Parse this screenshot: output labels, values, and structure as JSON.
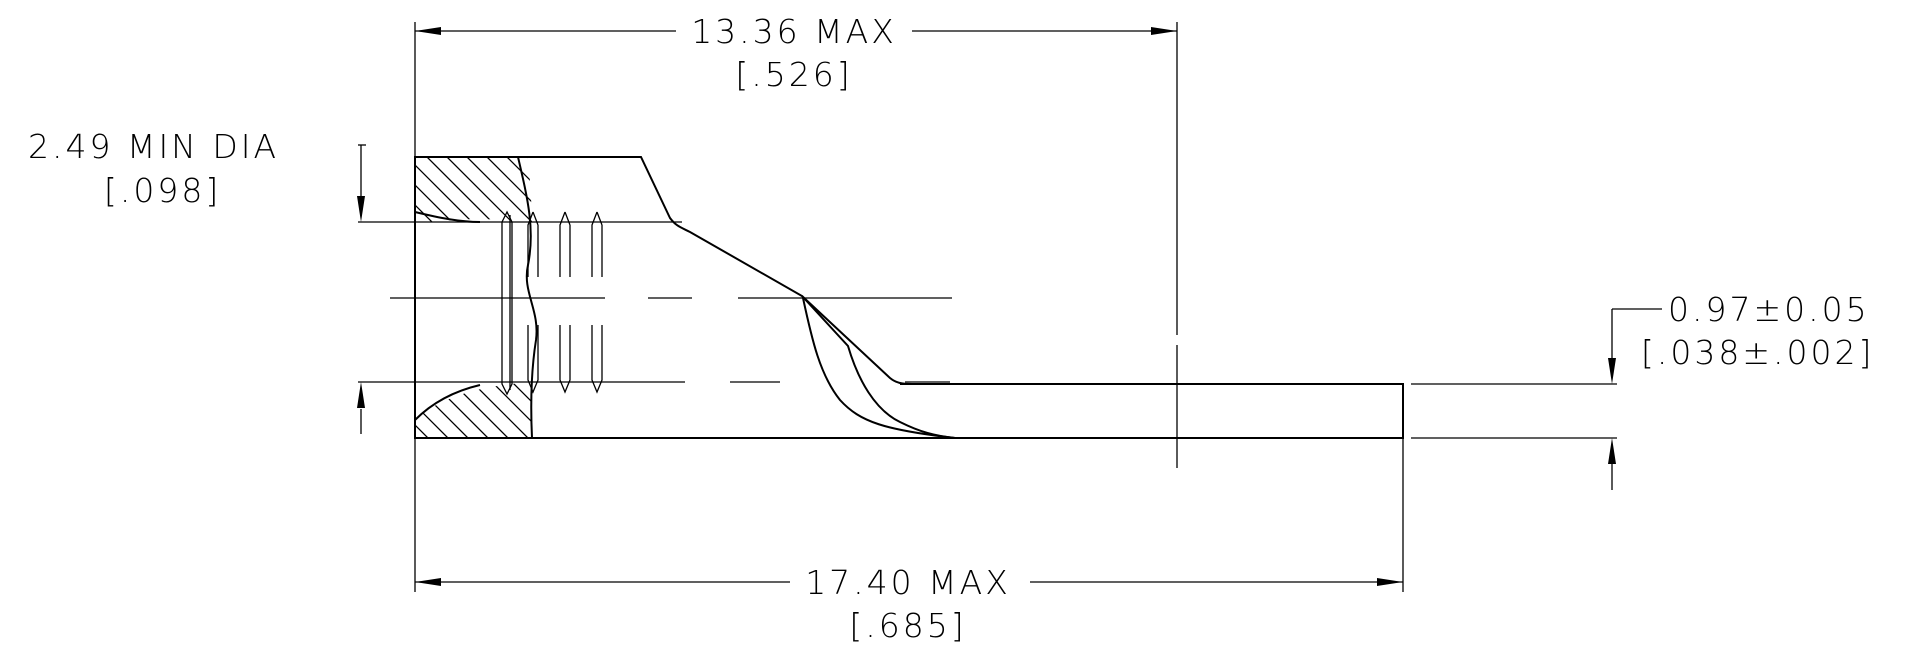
{
  "dimensions": {
    "overall_length": {
      "metric": "17.40 MAX",
      "imperial": "[.685]"
    },
    "partial_length": {
      "metric": "13.36 MAX",
      "imperial": "[.526]"
    },
    "inner_diameter": {
      "metric": "2.49 MIN DIA",
      "imperial": "[.098]"
    },
    "tab_thickness": {
      "metric": "0.97±0.05",
      "imperial": "[.038±.002]"
    }
  }
}
